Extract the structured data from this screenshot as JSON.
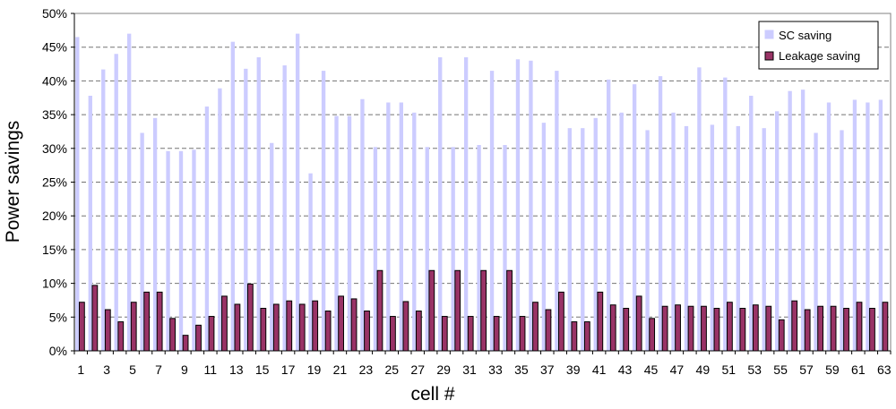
{
  "chart_data": {
    "type": "bar",
    "xlabel": "cell #",
    "ylabel": "Power savings",
    "ylim": [
      0,
      0.5
    ],
    "yticks": [
      0,
      0.05,
      0.1,
      0.15,
      0.2,
      0.25,
      0.3,
      0.35,
      0.4,
      0.45,
      0.5
    ],
    "ytick_labels": [
      "0%",
      "5%",
      "10%",
      "15%",
      "20%",
      "25%",
      "30%",
      "35%",
      "40%",
      "45%",
      "50%"
    ],
    "categories": [
      1,
      2,
      3,
      4,
      5,
      6,
      7,
      8,
      9,
      10,
      11,
      12,
      13,
      14,
      15,
      16,
      17,
      18,
      19,
      20,
      21,
      22,
      23,
      24,
      25,
      26,
      27,
      28,
      29,
      30,
      31,
      32,
      33,
      34,
      35,
      36,
      37,
      38,
      39,
      40,
      41,
      42,
      43,
      44,
      45,
      46,
      47,
      48,
      49,
      50,
      51,
      52,
      53,
      54,
      55,
      56,
      57,
      58,
      59,
      60,
      61,
      62,
      63
    ],
    "xtick_labels": [
      "1",
      "3",
      "5",
      "7",
      "9",
      "11",
      "13",
      "15",
      "17",
      "19",
      "21",
      "23",
      "25",
      "27",
      "29",
      "31",
      "33",
      "35",
      "37",
      "39",
      "41",
      "43",
      "45",
      "47",
      "49",
      "51",
      "53",
      "55",
      "57",
      "59",
      "61",
      "63"
    ],
    "grid": "horizontal dashed",
    "legend_position": "top-right",
    "colors": {
      "sc": "#ccccff",
      "leakage": "#993366"
    },
    "series": [
      {
        "name": "SC saving",
        "values": [
          0.465,
          0.378,
          0.417,
          0.44,
          0.47,
          0.323,
          0.345,
          0.296,
          0.296,
          0.298,
          0.362,
          0.389,
          0.458,
          0.418,
          0.435,
          0.308,
          0.423,
          0.47,
          0.263,
          0.415,
          0.348,
          0.348,
          0.373,
          0.302,
          0.368,
          0.368,
          0.353,
          0.302,
          0.435,
          0.302,
          0.435,
          0.305,
          0.415,
          0.305,
          0.432,
          0.43,
          0.338,
          0.415,
          0.33,
          0.33,
          0.345,
          0.402,
          0.353,
          0.395,
          0.327,
          0.407,
          0.353,
          0.333,
          0.42,
          0.335,
          0.405,
          0.333,
          0.378,
          0.33,
          0.355,
          0.385,
          0.387,
          0.323,
          0.368,
          0.327,
          0.372,
          0.368,
          0.372
        ]
      },
      {
        "name": "Leakage saving",
        "values": [
          0.072,
          0.097,
          0.061,
          0.043,
          0.072,
          0.087,
          0.087,
          0.048,
          0.023,
          0.038,
          0.051,
          0.081,
          0.069,
          0.099,
          0.063,
          0.069,
          0.074,
          0.069,
          0.074,
          0.059,
          0.081,
          0.077,
          0.059,
          0.119,
          0.051,
          0.073,
          0.059,
          0.119,
          0.051,
          0.119,
          0.051,
          0.119,
          0.051,
          0.119,
          0.051,
          0.072,
          0.061,
          0.087,
          0.043,
          0.043,
          0.087,
          0.068,
          0.063,
          0.081,
          0.048,
          0.066,
          0.068,
          0.066,
          0.066,
          0.063,
          0.072,
          0.063,
          0.068,
          0.066,
          0.046,
          0.074,
          0.061,
          0.066,
          0.066,
          0.063,
          0.072,
          0.063,
          0.072
        ]
      }
    ]
  }
}
